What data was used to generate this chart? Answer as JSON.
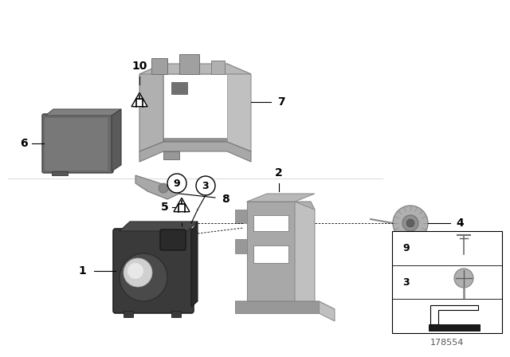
{
  "background_color": "#ffffff",
  "diagram_id": "178554",
  "figsize": [
    6.4,
    4.48
  ],
  "dpi": 100,
  "part_gray": "#a8a8a8",
  "part_gray_light": "#c0c0c0",
  "part_gray_dark": "#888888",
  "sensor_dark": "#3c3c3c",
  "sensor_mid": "#5a5a5a",
  "lens_light": "#d0d0d0",
  "line_color": "#000000",
  "label_fs": 8.5,
  "bold_label_fs": 10
}
